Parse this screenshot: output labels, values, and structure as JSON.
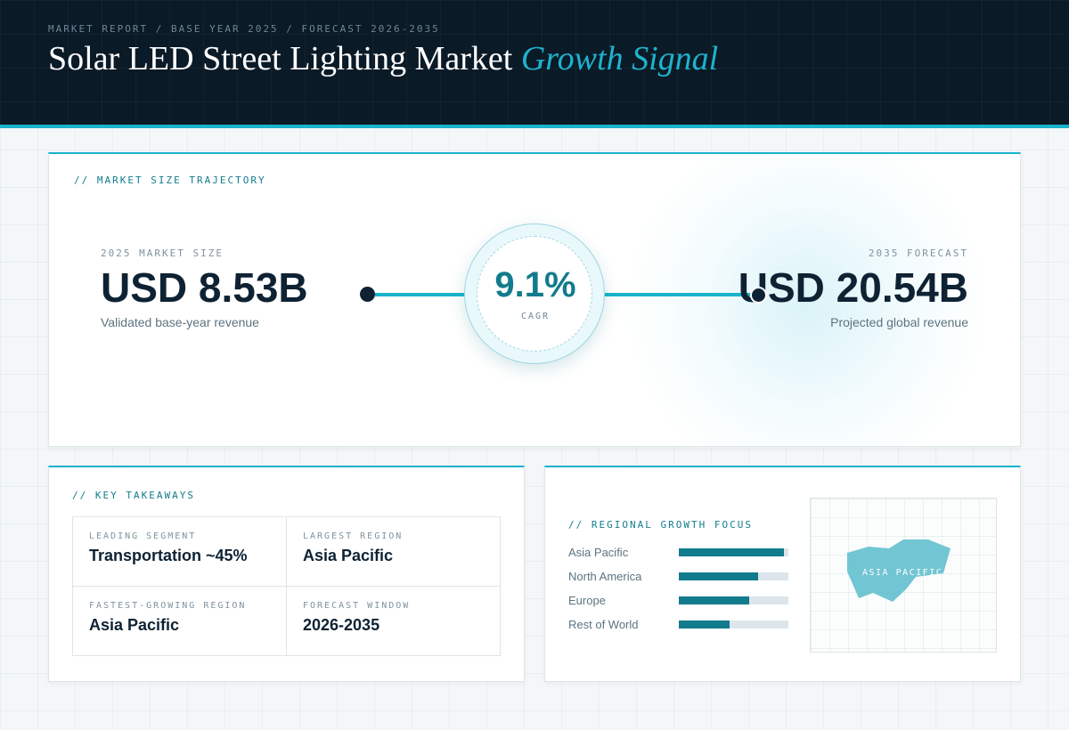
{
  "header": {
    "breadcrumb": "MARKET REPORT / BASE YEAR 2025 / FORECAST 2026-2035",
    "title_main": "Solar LED Street Lighting Market",
    "title_accent": "Growth Signal"
  },
  "trajectory": {
    "title": "// MARKET SIZE TRAJECTORY",
    "base": {
      "label": "2025 MARKET SIZE",
      "value": "USD 8.53B",
      "caption": "Validated base-year revenue"
    },
    "cagr": {
      "value": "9.1%",
      "label": "CAGR"
    },
    "forecast": {
      "label": "2035 FORECAST",
      "value": "USD 20.54B",
      "caption": "Projected global revenue"
    }
  },
  "takeaways": {
    "title": "// KEY TAKEAWAYS",
    "items": [
      {
        "label": "LEADING SEGMENT",
        "value": "Transportation ~45%"
      },
      {
        "label": "LARGEST REGION",
        "value": "Asia Pacific"
      },
      {
        "label": "FASTEST-GROWING REGION",
        "value": "Asia Pacific"
      },
      {
        "label": "FORECAST WINDOW",
        "value": "2026-2035"
      }
    ]
  },
  "regional": {
    "title": "// REGIONAL GROWTH FOCUS",
    "regions": [
      {
        "name": "Asia Pacific",
        "level": 0.96
      },
      {
        "name": "North America",
        "level": 0.72
      },
      {
        "name": "Europe",
        "level": 0.64
      },
      {
        "name": "Rest of World",
        "level": 0.46
      }
    ],
    "map_label": "ASIA PACIFIC"
  },
  "colors": {
    "accent": "#19b3cc",
    "bar": "#127b8c",
    "header_bg": "#0a1a27",
    "map_shape": "#72c5d2"
  }
}
